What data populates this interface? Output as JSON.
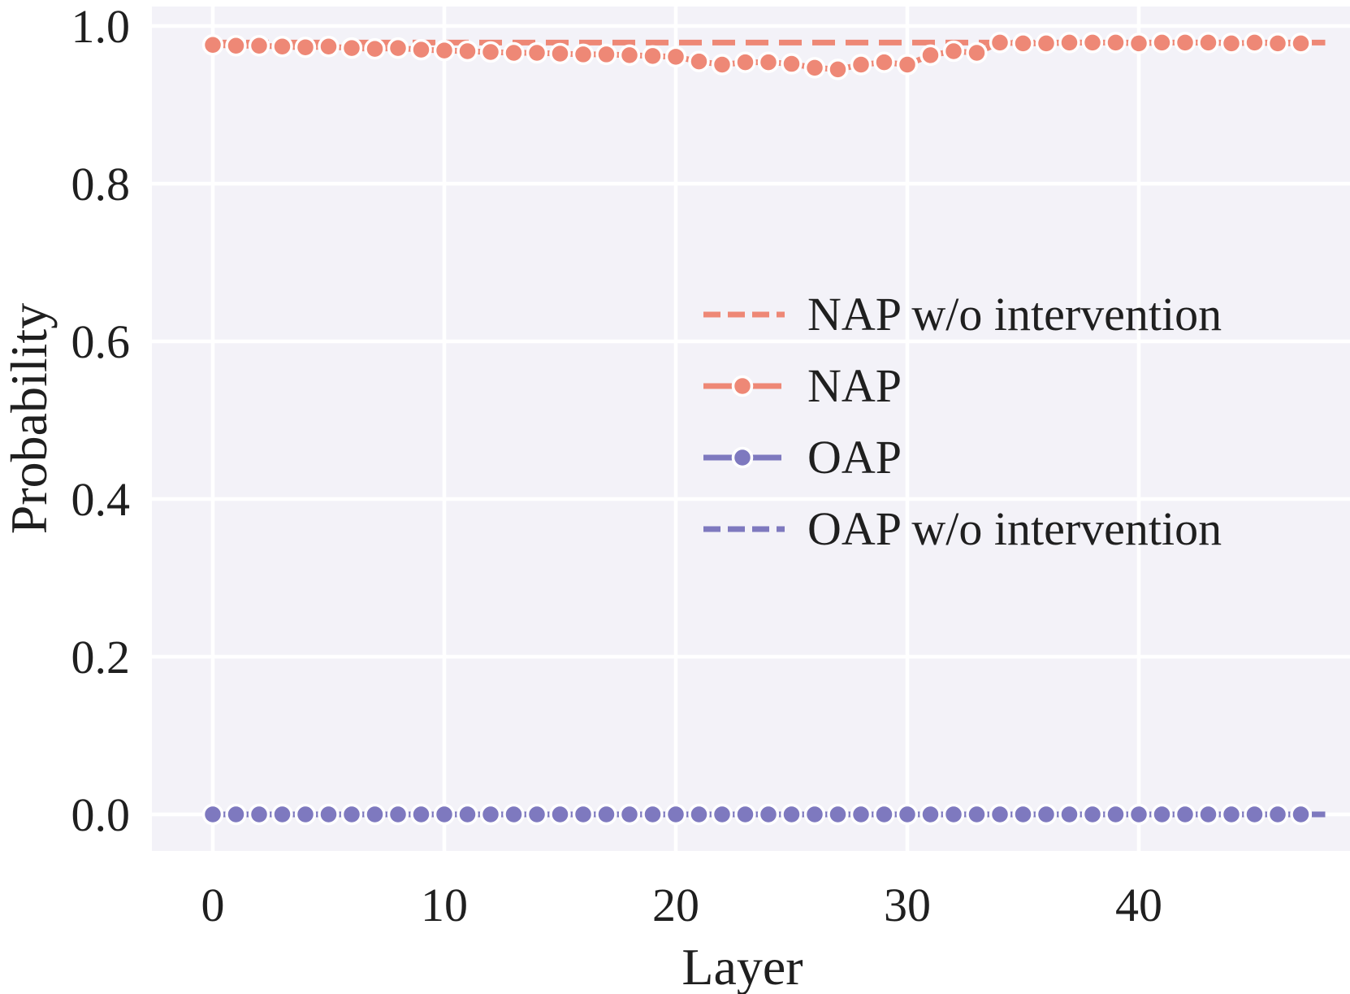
{
  "colors": {
    "nap": "#EE8876",
    "oap": "#7E79BF",
    "plot_background": "#F3F2F8",
    "grid": "#FFFFFF",
    "text": "#1F1F1F"
  },
  "legend": {
    "items": [
      {
        "label": "NAP w/o intervention"
      },
      {
        "label": "NAP"
      },
      {
        "label": "OAP"
      },
      {
        "label": "OAP w/o intervention"
      }
    ]
  },
  "chart_data": {
    "type": "line",
    "title": "",
    "xlabel": "Layer",
    "ylabel": "Probability",
    "xlim": [
      -2.6,
      49.1
    ],
    "ylim": [
      -0.047,
      1.026
    ],
    "xticks": [
      0,
      10,
      20,
      30,
      40
    ],
    "xtick_labels": [
      "0",
      "10",
      "20",
      "30",
      "40"
    ],
    "yticks": [
      0.0,
      0.2,
      0.4,
      0.6,
      0.8,
      1.0
    ],
    "ytick_labels": [
      "0.0",
      "0.2",
      "0.4",
      "0.6",
      "0.8",
      "1.0"
    ],
    "grid": true,
    "legend_position": "center-right",
    "x": [
      0,
      1,
      2,
      3,
      4,
      5,
      6,
      7,
      8,
      9,
      10,
      11,
      12,
      13,
      14,
      15,
      16,
      17,
      18,
      19,
      20,
      21,
      22,
      23,
      24,
      25,
      26,
      27,
      28,
      29,
      30,
      31,
      32,
      33,
      34,
      35,
      36,
      37,
      38,
      39,
      40,
      41,
      42,
      43,
      44,
      45,
      46,
      47
    ],
    "series": [
      {
        "name": "NAP w/o intervention",
        "style": "dashed",
        "color": "#EE8876",
        "marker": false,
        "values": [
          0.979,
          0.979,
          0.979,
          0.979,
          0.979,
          0.979,
          0.979,
          0.979,
          0.979,
          0.979,
          0.979,
          0.979,
          0.979,
          0.979,
          0.979,
          0.979,
          0.979,
          0.979,
          0.979,
          0.979,
          0.979,
          0.979,
          0.979,
          0.979,
          0.979,
          0.979,
          0.979,
          0.979,
          0.979,
          0.979,
          0.979,
          0.979,
          0.979,
          0.979,
          0.979,
          0.979,
          0.979,
          0.979,
          0.979,
          0.979,
          0.979,
          0.979,
          0.979,
          0.979,
          0.979,
          0.979,
          0.979,
          0.979
        ]
      },
      {
        "name": "NAP",
        "style": "solid",
        "color": "#EE8876",
        "marker": true,
        "values": [
          0.976,
          0.975,
          0.975,
          0.974,
          0.973,
          0.974,
          0.972,
          0.971,
          0.972,
          0.97,
          0.969,
          0.968,
          0.967,
          0.966,
          0.966,
          0.965,
          0.964,
          0.964,
          0.963,
          0.962,
          0.961,
          0.955,
          0.951,
          0.954,
          0.954,
          0.952,
          0.947,
          0.945,
          0.951,
          0.954,
          0.951,
          0.963,
          0.968,
          0.966,
          0.979,
          0.978,
          0.978,
          0.979,
          0.979,
          0.979,
          0.978,
          0.979,
          0.979,
          0.979,
          0.978,
          0.979,
          0.978,
          0.978
        ]
      },
      {
        "name": "OAP",
        "style": "solid",
        "color": "#7E79BF",
        "marker": true,
        "values": [
          0.0,
          0.0,
          0.0,
          0.0,
          0.0,
          0.0,
          0.0,
          0.0,
          0.0,
          0.0,
          0.0,
          0.0,
          0.0,
          0.0,
          0.0,
          0.0,
          0.0,
          0.0,
          0.0,
          0.0,
          0.0,
          0.0,
          0.0,
          0.0,
          0.0,
          0.0,
          0.0,
          0.0,
          0.0,
          0.0,
          0.0,
          0.0,
          0.0,
          0.0,
          0.0,
          0.0,
          0.0,
          0.0,
          0.0,
          0.0,
          0.0,
          0.0,
          0.0,
          0.0,
          0.0,
          0.0,
          0.0,
          0.0
        ]
      },
      {
        "name": "OAP w/o intervention",
        "style": "dashed",
        "color": "#7E79BF",
        "marker": false,
        "values": [
          0.0,
          0.0,
          0.0,
          0.0,
          0.0,
          0.0,
          0.0,
          0.0,
          0.0,
          0.0,
          0.0,
          0.0,
          0.0,
          0.0,
          0.0,
          0.0,
          0.0,
          0.0,
          0.0,
          0.0,
          0.0,
          0.0,
          0.0,
          0.0,
          0.0,
          0.0,
          0.0,
          0.0,
          0.0,
          0.0,
          0.0,
          0.0,
          0.0,
          0.0,
          0.0,
          0.0,
          0.0,
          0.0,
          0.0,
          0.0,
          0.0,
          0.0,
          0.0,
          0.0,
          0.0,
          0.0,
          0.0,
          0.0
        ]
      }
    ]
  }
}
